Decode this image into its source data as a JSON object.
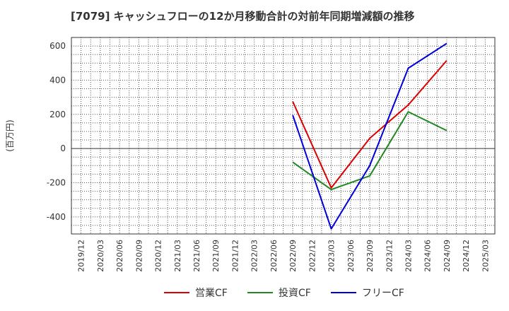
{
  "chart_data": {
    "type": "line",
    "title": "[7079]  キャッシュフローの12か月移動合計の対前年同期増減額の推移",
    "ylabel": "(百万円)",
    "xlabel": "",
    "ylim": [
      -500,
      650
    ],
    "yticks": [
      600,
      400,
      200,
      0,
      -200,
      -400
    ],
    "categories": [
      "2019/12",
      "2020/03",
      "2020/06",
      "2020/09",
      "2020/12",
      "2021/03",
      "2021/06",
      "2021/09",
      "2021/12",
      "2022/03",
      "2022/06",
      "2022/09",
      "2022/12",
      "2023/03",
      "2023/06",
      "2023/09",
      "2023/12",
      "2024/03",
      "2024/06",
      "2024/09",
      "2024/12",
      "2025/03"
    ],
    "grid": true,
    "legend_position": "bottom",
    "series": [
      {
        "name": "営業CF",
        "color": "#dd0000",
        "values": [
          null,
          null,
          null,
          null,
          null,
          null,
          null,
          null,
          null,
          null,
          null,
          275,
          null,
          -230,
          null,
          60,
          null,
          255,
          null,
          515,
          null,
          null
        ]
      },
      {
        "name": "投資CF",
        "color": "#228822",
        "values": [
          null,
          null,
          null,
          null,
          null,
          null,
          null,
          null,
          null,
          null,
          null,
          -80,
          null,
          -240,
          null,
          -160,
          null,
          215,
          null,
          105,
          null,
          null
        ]
      },
      {
        "name": "フリーCF",
        "color": "#0000dd",
        "values": [
          null,
          null,
          null,
          null,
          null,
          null,
          null,
          null,
          null,
          null,
          null,
          195,
          null,
          -470,
          null,
          -100,
          null,
          470,
          null,
          615,
          null,
          null
        ]
      }
    ]
  }
}
